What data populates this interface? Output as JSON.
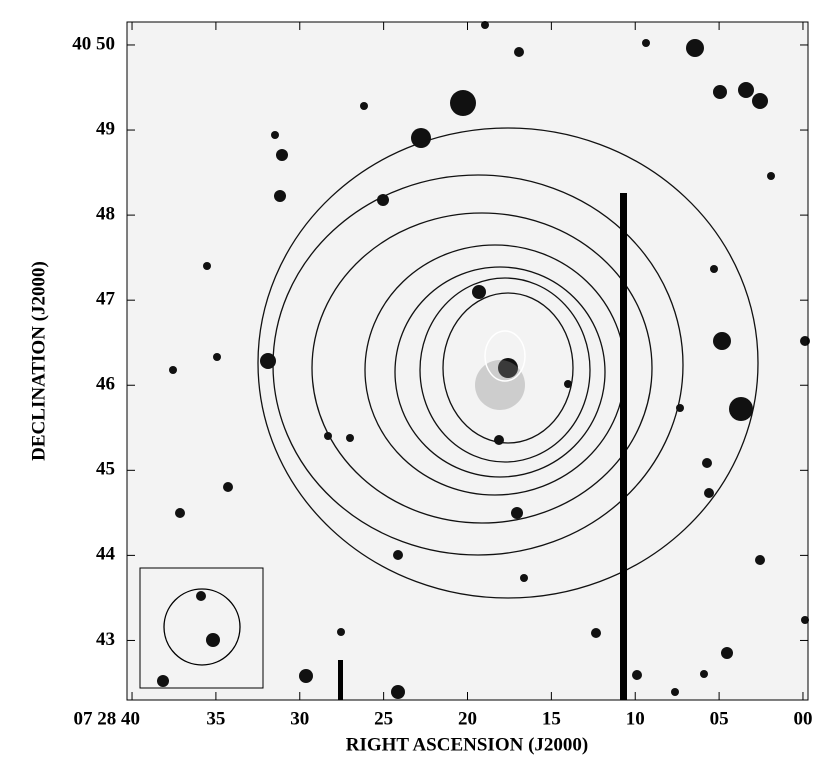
{
  "chart_data": {
    "type": "image",
    "x_label": "RIGHT ASCENSION (J2000)",
    "y_label": "DECLINATION (J2000)",
    "xlim": [
      40.3,
      -0.3
    ],
    "xticks": [
      {
        "value": 40,
        "label": "07 28 40"
      },
      35,
      30,
      25,
      20,
      15,
      10,
      {
        "value": 5,
        "label": "05"
      },
      {
        "value": 0,
        "label": "00"
      }
    ],
    "ylim": [
      42.3,
      50.27
    ],
    "yticks": [
      43,
      44,
      45,
      46,
      47,
      48,
      49,
      {
        "value": 50,
        "label": "40 50"
      }
    ]
  }
}
